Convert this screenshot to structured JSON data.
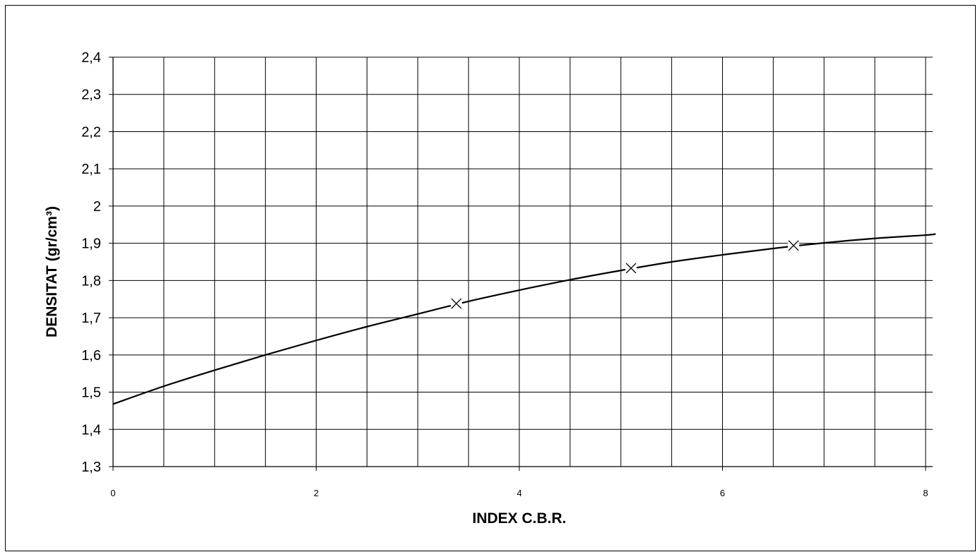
{
  "chart_data": {
    "type": "line",
    "title": "",
    "xlabel": "INDEX C.B.R.",
    "ylabel": "DENSITAT (gr/cm³)",
    "xlim": [
      0,
      8
    ],
    "ylim": [
      1.3,
      2.4
    ],
    "x_ticks": [
      {
        "value": 0,
        "label": "0"
      },
      {
        "value": 2,
        "label": "2"
      },
      {
        "value": 4,
        "label": "4"
      },
      {
        "value": 6,
        "label": "6"
      },
      {
        "value": 8,
        "label": "8"
      }
    ],
    "y_ticks": [
      {
        "value": 1.3,
        "label": "1,3"
      },
      {
        "value": 1.4,
        "label": "1,4"
      },
      {
        "value": 1.5,
        "label": "1,5"
      },
      {
        "value": 1.6,
        "label": "1,6"
      },
      {
        "value": 1.7,
        "label": "1,7"
      },
      {
        "value": 1.8,
        "label": "1,8"
      },
      {
        "value": 1.9,
        "label": "1,9"
      },
      {
        "value": 2.0,
        "label": "2"
      },
      {
        "value": 2.1,
        "label": "2,1"
      },
      {
        "value": 2.2,
        "label": "2,2"
      },
      {
        "value": 2.3,
        "label": "2,3"
      },
      {
        "value": 2.4,
        "label": "2,4"
      }
    ],
    "grid": true,
    "x_grid_step": 0.5,
    "curve": {
      "x": [
        0,
        0.5,
        1,
        1.5,
        2,
        2.5,
        3,
        3.5,
        4,
        4.5,
        5,
        5.5,
        6,
        6.5,
        7,
        7.5,
        8,
        8.1
      ],
      "y": [
        1.468,
        1.516,
        1.559,
        1.6,
        1.639,
        1.676,
        1.71,
        1.744,
        1.774,
        1.802,
        1.827,
        1.85,
        1.869,
        1.886,
        1.901,
        1.913,
        1.922,
        1.925
      ]
    },
    "points": {
      "marker": "x",
      "x": [
        3.38,
        5.1,
        6.7
      ],
      "y": [
        1.738,
        1.833,
        1.894
      ]
    },
    "legend": "none"
  }
}
